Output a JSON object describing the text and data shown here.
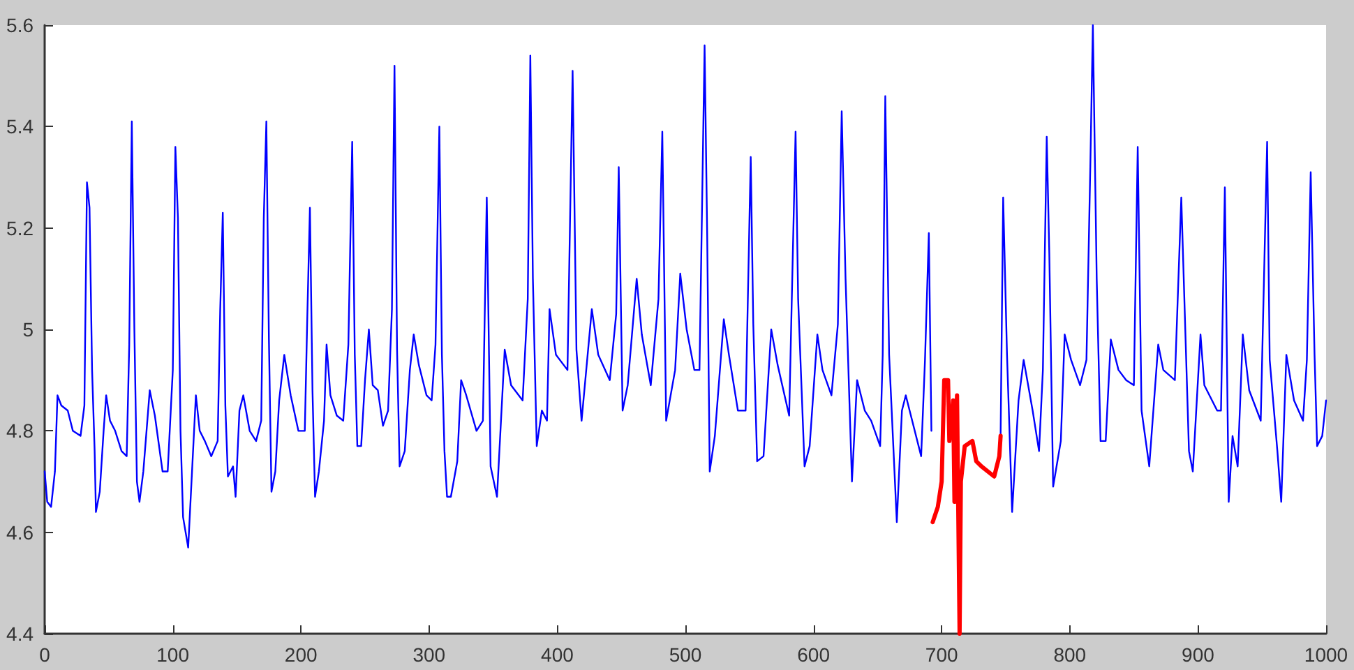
{
  "chart_data": {
    "type": "line",
    "xlim": [
      0,
      1000
    ],
    "ylim": [
      4.4,
      5.6
    ],
    "xticks": [
      0,
      100,
      200,
      300,
      400,
      500,
      600,
      700,
      800,
      900,
      1000
    ],
    "yticks": [
      4.4,
      4.6,
      4.8,
      5,
      5.2,
      5.4,
      5.6
    ],
    "grid": false,
    "marker": "none",
    "line_style": "solid",
    "series": [
      {
        "color": "#0000ff",
        "x": [
          0,
          2,
          5,
          8,
          10,
          13,
          18,
          22,
          28,
          31,
          33,
          35,
          37,
          39,
          40,
          43,
          46,
          48,
          51,
          55,
          60,
          64,
          66,
          68,
          70,
          72,
          74,
          77,
          82,
          86,
          92,
          96,
          100,
          102,
          104,
          106,
          108,
          112,
          115,
          118,
          121,
          125,
          130,
          135,
          137,
          139,
          141,
          143,
          147,
          149,
          152,
          155,
          160,
          165,
          169,
          171,
          173,
          175,
          177,
          180,
          183,
          187,
          192,
          198,
          203,
          205,
          207,
          209,
          211,
          214,
          218,
          220,
          223,
          228,
          233,
          237,
          240,
          242,
          244,
          247,
          250,
          253,
          256,
          260,
          264,
          268,
          271,
          273,
          275,
          277,
          281,
          285,
          288,
          292,
          298,
          302,
          305,
          308,
          310,
          312,
          314,
          317,
          322,
          325,
          329,
          337,
          342,
          345,
          348,
          353,
          359,
          364,
          373,
          377,
          379,
          381,
          384,
          388,
          392,
          394,
          399,
          408,
          412,
          415,
          419,
          427,
          432,
          441,
          446,
          448,
          451,
          455,
          462,
          466,
          473,
          479,
          482,
          485,
          492,
          496,
          501,
          507,
          511,
          515,
          517,
          519,
          523,
          530,
          534,
          541,
          547,
          551,
          553,
          556,
          561,
          567,
          572,
          581,
          586,
          588,
          593,
          597,
          603,
          607,
          614,
          619,
          622,
          625,
          630,
          634,
          640,
          645,
          652,
          654,
          656,
          659,
          665,
          669,
          672,
          684,
          687,
          690,
          692,
          693,
          720,
          746,
          748,
          751,
          755,
          760,
          764,
          771,
          776,
          779,
          782,
          784,
          787,
          793,
          796,
          801,
          808,
          813,
          816,
          818,
          821,
          824,
          828,
          832,
          838,
          844,
          850,
          853,
          856,
          862,
          869,
          873,
          882,
          887,
          893,
          896,
          902,
          905,
          915,
          918,
          921,
          924,
          927,
          931,
          935,
          940,
          949,
          954,
          956,
          962,
          965,
          969,
          975,
          982,
          985,
          988,
          991,
          993,
          997,
          1000
        ],
        "values": [
          4.72,
          4.66,
          4.65,
          4.72,
          4.87,
          4.85,
          4.84,
          4.8,
          4.79,
          4.85,
          5.29,
          5.24,
          4.92,
          4.76,
          4.64,
          4.68,
          4.8,
          4.87,
          4.82,
          4.8,
          4.76,
          4.75,
          4.97,
          5.41,
          5.0,
          4.7,
          4.66,
          4.72,
          4.88,
          4.83,
          4.72,
          4.72,
          4.92,
          5.36,
          5.22,
          4.8,
          4.63,
          4.57,
          4.72,
          4.87,
          4.8,
          4.78,
          4.75,
          4.78,
          5.04,
          5.23,
          4.85,
          4.71,
          4.73,
          4.67,
          4.84,
          4.87,
          4.8,
          4.78,
          4.82,
          5.22,
          5.41,
          4.98,
          4.68,
          4.72,
          4.86,
          4.95,
          4.87,
          4.8,
          4.8,
          5.03,
          5.24,
          4.88,
          4.67,
          4.72,
          4.82,
          4.97,
          4.87,
          4.83,
          4.82,
          4.97,
          5.37,
          4.95,
          4.77,
          4.77,
          4.9,
          5.0,
          4.89,
          4.88,
          4.81,
          4.84,
          5.04,
          5.52,
          4.96,
          4.73,
          4.76,
          4.92,
          4.99,
          4.93,
          4.87,
          4.86,
          4.97,
          5.4,
          4.95,
          4.76,
          4.67,
          4.67,
          4.74,
          4.9,
          4.87,
          4.8,
          4.82,
          5.26,
          4.73,
          4.67,
          4.96,
          4.89,
          4.86,
          5.06,
          5.54,
          5.1,
          4.77,
          4.84,
          4.82,
          5.04,
          4.95,
          4.92,
          5.51,
          4.96,
          4.82,
          5.04,
          4.95,
          4.9,
          5.03,
          5.32,
          4.84,
          4.89,
          5.1,
          4.99,
          4.89,
          5.06,
          5.39,
          4.82,
          4.92,
          5.11,
          5.0,
          4.92,
          4.92,
          5.56,
          5.19,
          4.72,
          4.79,
          5.02,
          4.95,
          4.84,
          4.84,
          5.34,
          5.01,
          4.74,
          4.75,
          5.0,
          4.93,
          4.83,
          5.39,
          5.06,
          4.73,
          4.77,
          4.99,
          4.92,
          4.87,
          5.01,
          5.43,
          5.1,
          4.7,
          4.9,
          4.84,
          4.82,
          4.77,
          4.95,
          5.46,
          4.95,
          4.62,
          4.84,
          4.87,
          4.75,
          4.94,
          5.19,
          4.8,
          null,
          null,
          4.79,
          5.26,
          4.95,
          4.64,
          4.86,
          4.94,
          4.84,
          4.76,
          4.92,
          5.38,
          5.15,
          4.69,
          4.78,
          4.99,
          4.94,
          4.89,
          4.94,
          5.32,
          5.6,
          5.1,
          4.78,
          4.78,
          4.98,
          4.92,
          4.9,
          4.89,
          5.36,
          4.84,
          4.73,
          4.97,
          4.92,
          4.9,
          5.26,
          4.76,
          4.72,
          4.99,
          4.89,
          4.84,
          4.84,
          5.28,
          4.66,
          4.79,
          4.73,
          4.99,
          4.88,
          4.82,
          5.37,
          4.94,
          4.76,
          4.66,
          4.95,
          4.86,
          4.82,
          4.94,
          5.31,
          4.95,
          4.77,
          4.79,
          4.86
        ]
      },
      {
        "color": "#ff0000",
        "x": [
          693,
          697,
          700,
          702,
          705,
          706,
          709,
          710,
          712,
          714,
          715,
          718,
          724,
          727,
          731,
          741,
          745,
          746
        ],
        "values": [
          4.62,
          4.65,
          4.7,
          4.9,
          4.9,
          4.78,
          4.86,
          4.66,
          4.87,
          4.4,
          4.7,
          4.77,
          4.78,
          4.74,
          4.73,
          4.71,
          4.75,
          4.79
        ]
      }
    ]
  }
}
